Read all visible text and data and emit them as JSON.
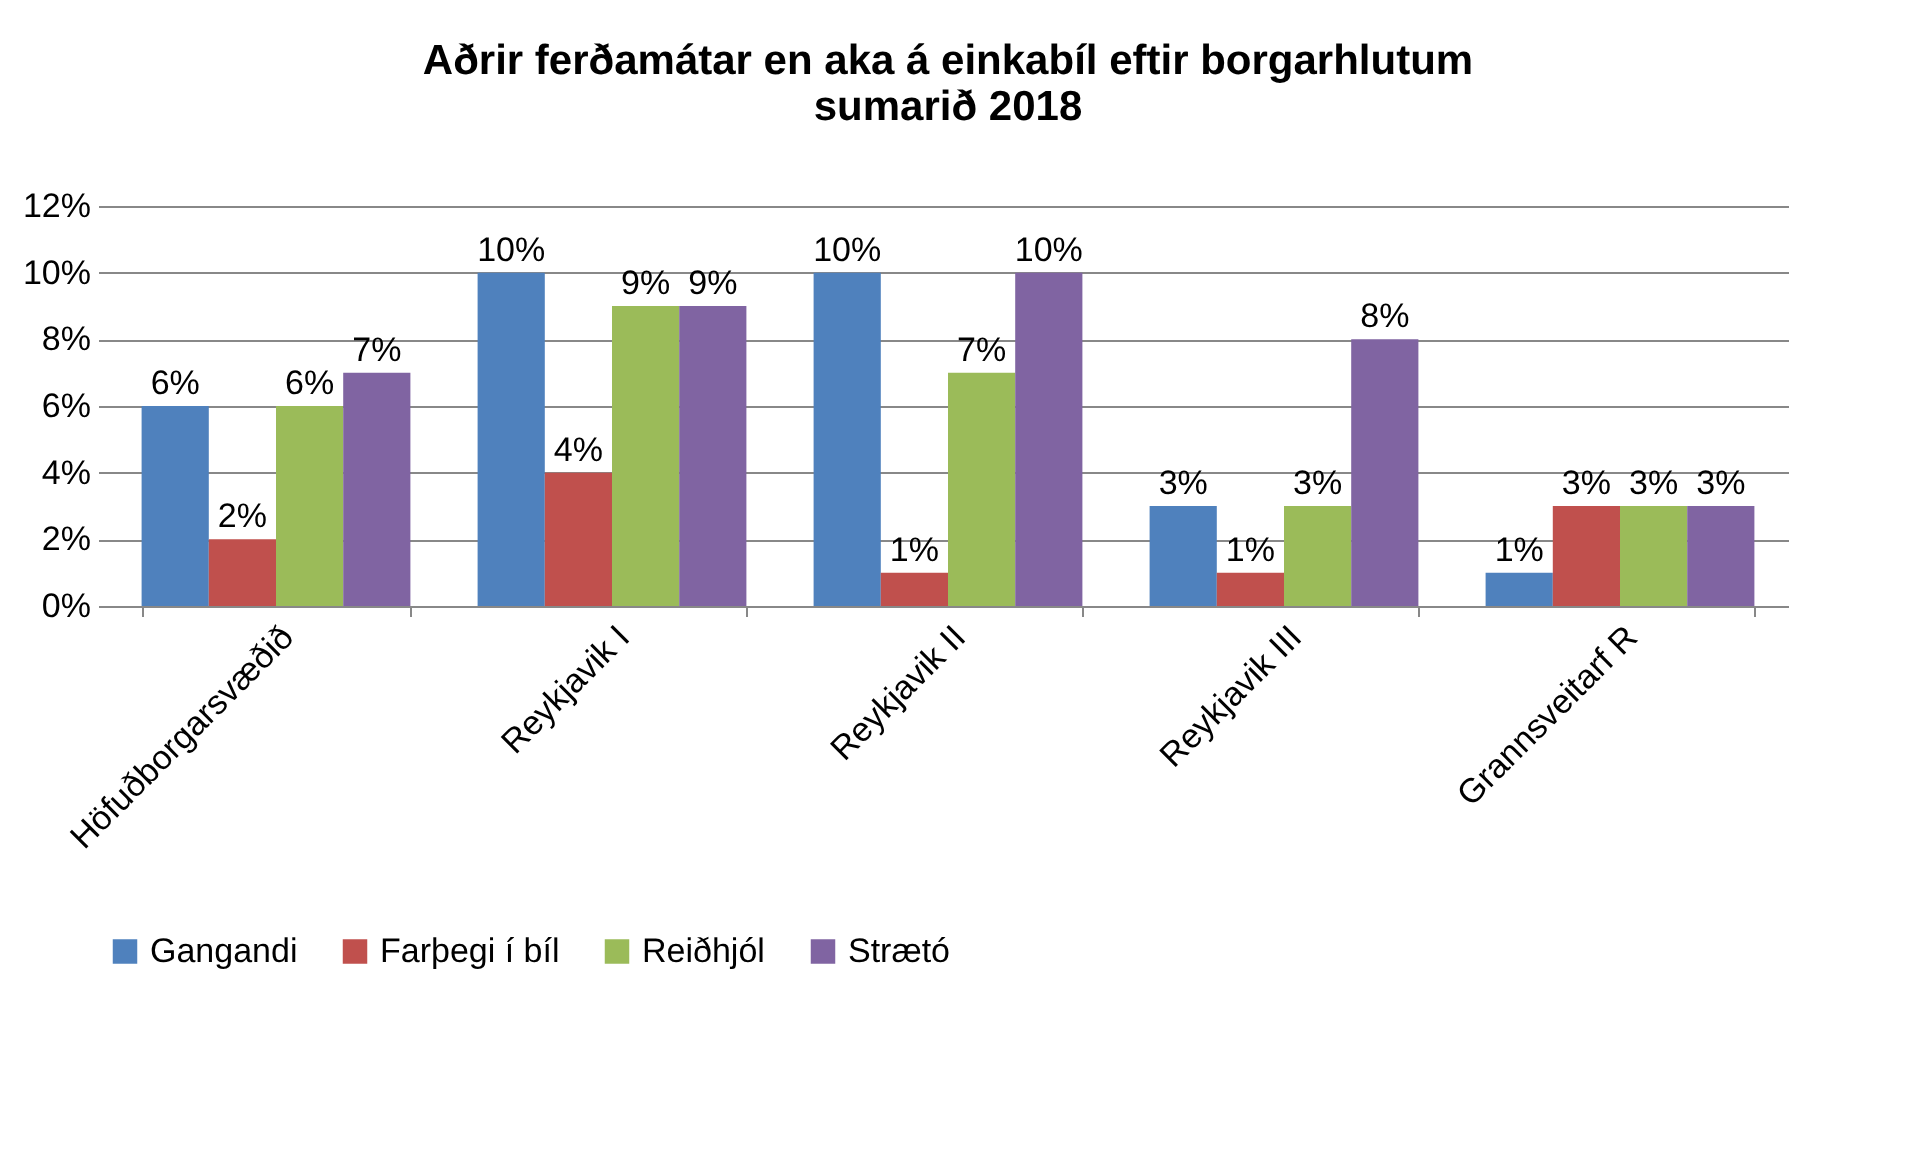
{
  "chart_data": {
    "type": "bar",
    "title": "Aðrir ferðamátar en aka á einkabíl eftir borgarhlutum\nsumarið 2018",
    "categories": [
      "Höfuðborgarsvæðið",
      "Reykjavik I",
      "Reykjavik II",
      "Reykjavik III",
      "Grannsveitarf R"
    ],
    "series": [
      {
        "name": "Gangandi",
        "color": "#4f81bd",
        "values": [
          6,
          10,
          10,
          3,
          1
        ],
        "value_labels": [
          "6%",
          "10%",
          "10%",
          "3%",
          "1%"
        ]
      },
      {
        "name": "Farþegi í bíl",
        "color": "#c0504d",
        "values": [
          2,
          4,
          1,
          1,
          3
        ],
        "value_labels": [
          "2%",
          "4%",
          "1%",
          "1%",
          "3%"
        ]
      },
      {
        "name": "Reiðhjól",
        "color": "#9bbb59",
        "values": [
          6,
          9,
          7,
          3,
          3
        ],
        "value_labels": [
          "6%",
          "9%",
          "7%",
          "3%",
          "3%"
        ]
      },
      {
        "name": "Strætó",
        "color": "#8064a2",
        "values": [
          7,
          9,
          10,
          8,
          3
        ],
        "value_labels": [
          "7%",
          "9%",
          "10%",
          "8%",
          "3%"
        ]
      }
    ],
    "ylim": [
      0,
      12
    ],
    "yticks": [
      {
        "value": 0,
        "label": "0%"
      },
      {
        "value": 2,
        "label": "2%"
      },
      {
        "value": 4,
        "label": "4%"
      },
      {
        "value": 6,
        "label": "6%"
      },
      {
        "value": 8,
        "label": "8%"
      },
      {
        "value": 10,
        "label": "10%"
      },
      {
        "value": 12,
        "label": "12%"
      }
    ],
    "grid": "y",
    "legend": "bottom"
  }
}
